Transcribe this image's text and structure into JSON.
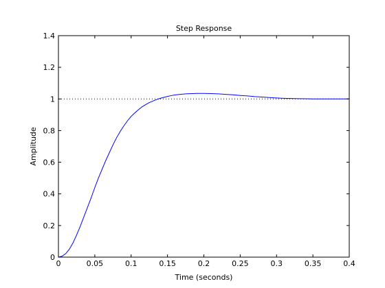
{
  "chart_data": {
    "type": "line",
    "title": "Step Response",
    "xlabel": "Time (seconds)",
    "ylabel": "Amplitude",
    "xlim": [
      0,
      0.4
    ],
    "ylim": [
      0,
      1.4
    ],
    "xticks": [
      0,
      0.05,
      0.1,
      0.15,
      0.2,
      0.25,
      0.3,
      0.35,
      0.4
    ],
    "xtick_labels": [
      "0",
      "0.05",
      "0.1",
      "0.15",
      "0.2",
      "0.25",
      "0.3",
      "0.35",
      "0.4"
    ],
    "yticks": [
      0,
      0.2,
      0.4,
      0.6,
      0.8,
      1,
      1.2,
      1.4
    ],
    "ytick_labels": [
      "0",
      "0.2",
      "0.4",
      "0.6",
      "0.8",
      "1",
      "1.2",
      "1.4"
    ],
    "grid": false,
    "reference_line": {
      "y": 1,
      "style": "dotted",
      "color": "#000000"
    },
    "series": [
      {
        "color": "#0000ff",
        "x": [
          0,
          0.005,
          0.01,
          0.015,
          0.02,
          0.025,
          0.03,
          0.035,
          0.04,
          0.045,
          0.05,
          0.055,
          0.06,
          0.065,
          0.07,
          0.075,
          0.08,
          0.085,
          0.09,
          0.095,
          0.1,
          0.105,
          0.11,
          0.115,
          0.12,
          0.125,
          0.13,
          0.135,
          0.14,
          0.145,
          0.15,
          0.155,
          0.16,
          0.165,
          0.17,
          0.175,
          0.18,
          0.185,
          0.19,
          0.195,
          0.2,
          0.21,
          0.22,
          0.23,
          0.24,
          0.25,
          0.26,
          0.27,
          0.28,
          0.29,
          0.3,
          0.31,
          0.32,
          0.33,
          0.34,
          0.35,
          0.36,
          0.37,
          0.38,
          0.39,
          0.4
        ],
        "y": [
          0,
          0.006,
          0.022,
          0.05,
          0.09,
          0.14,
          0.195,
          0.255,
          0.315,
          0.375,
          0.44,
          0.5,
          0.555,
          0.61,
          0.66,
          0.71,
          0.755,
          0.795,
          0.83,
          0.862,
          0.89,
          0.912,
          0.932,
          0.95,
          0.964,
          0.977,
          0.987,
          0.996,
          1.004,
          1.01,
          1.016,
          1.021,
          1.025,
          1.028,
          1.03,
          1.032,
          1.033,
          1.034,
          1.035,
          1.035,
          1.035,
          1.034,
          1.032,
          1.029,
          1.026,
          1.022,
          1.019,
          1.015,
          1.012,
          1.009,
          1.006,
          1.004,
          1.003,
          1.002,
          1.001,
          1.0,
          1.0,
          1.0,
          1.0,
          1.0,
          1.0
        ]
      }
    ]
  }
}
